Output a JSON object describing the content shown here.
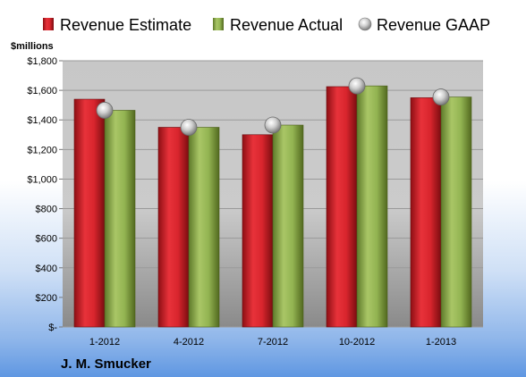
{
  "chart_data": {
    "type": "bar",
    "unit_label": "$millions",
    "company": "J. M. Smucker",
    "categories": [
      "1-2012",
      "4-2012",
      "7-2012",
      "10-2012",
      "1-2013"
    ],
    "ylim": [
      0,
      1800
    ],
    "yticks": [
      0,
      200,
      400,
      600,
      800,
      1000,
      1200,
      1400,
      1600,
      1800
    ],
    "ytick_labels": [
      "$-",
      "$200",
      "$400",
      "$600",
      "$800",
      "$1,000",
      "$1,200",
      "$1,400",
      "$1,600",
      "$1,800"
    ],
    "grid": true,
    "legend_position": "top",
    "series": [
      {
        "name": "Revenue Estimate",
        "kind": "bar",
        "color": "#cc1f27",
        "values": [
          1540,
          1350,
          1300,
          1625,
          1550
        ]
      },
      {
        "name": "Revenue Actual",
        "kind": "bar",
        "color": "#8cac4a",
        "values": [
          1465,
          1350,
          1365,
          1630,
          1555
        ]
      },
      {
        "name": "Revenue GAAP",
        "kind": "marker",
        "color": "#c0c0c0",
        "values": [
          1465,
          1350,
          1365,
          1630,
          1555
        ]
      }
    ]
  }
}
